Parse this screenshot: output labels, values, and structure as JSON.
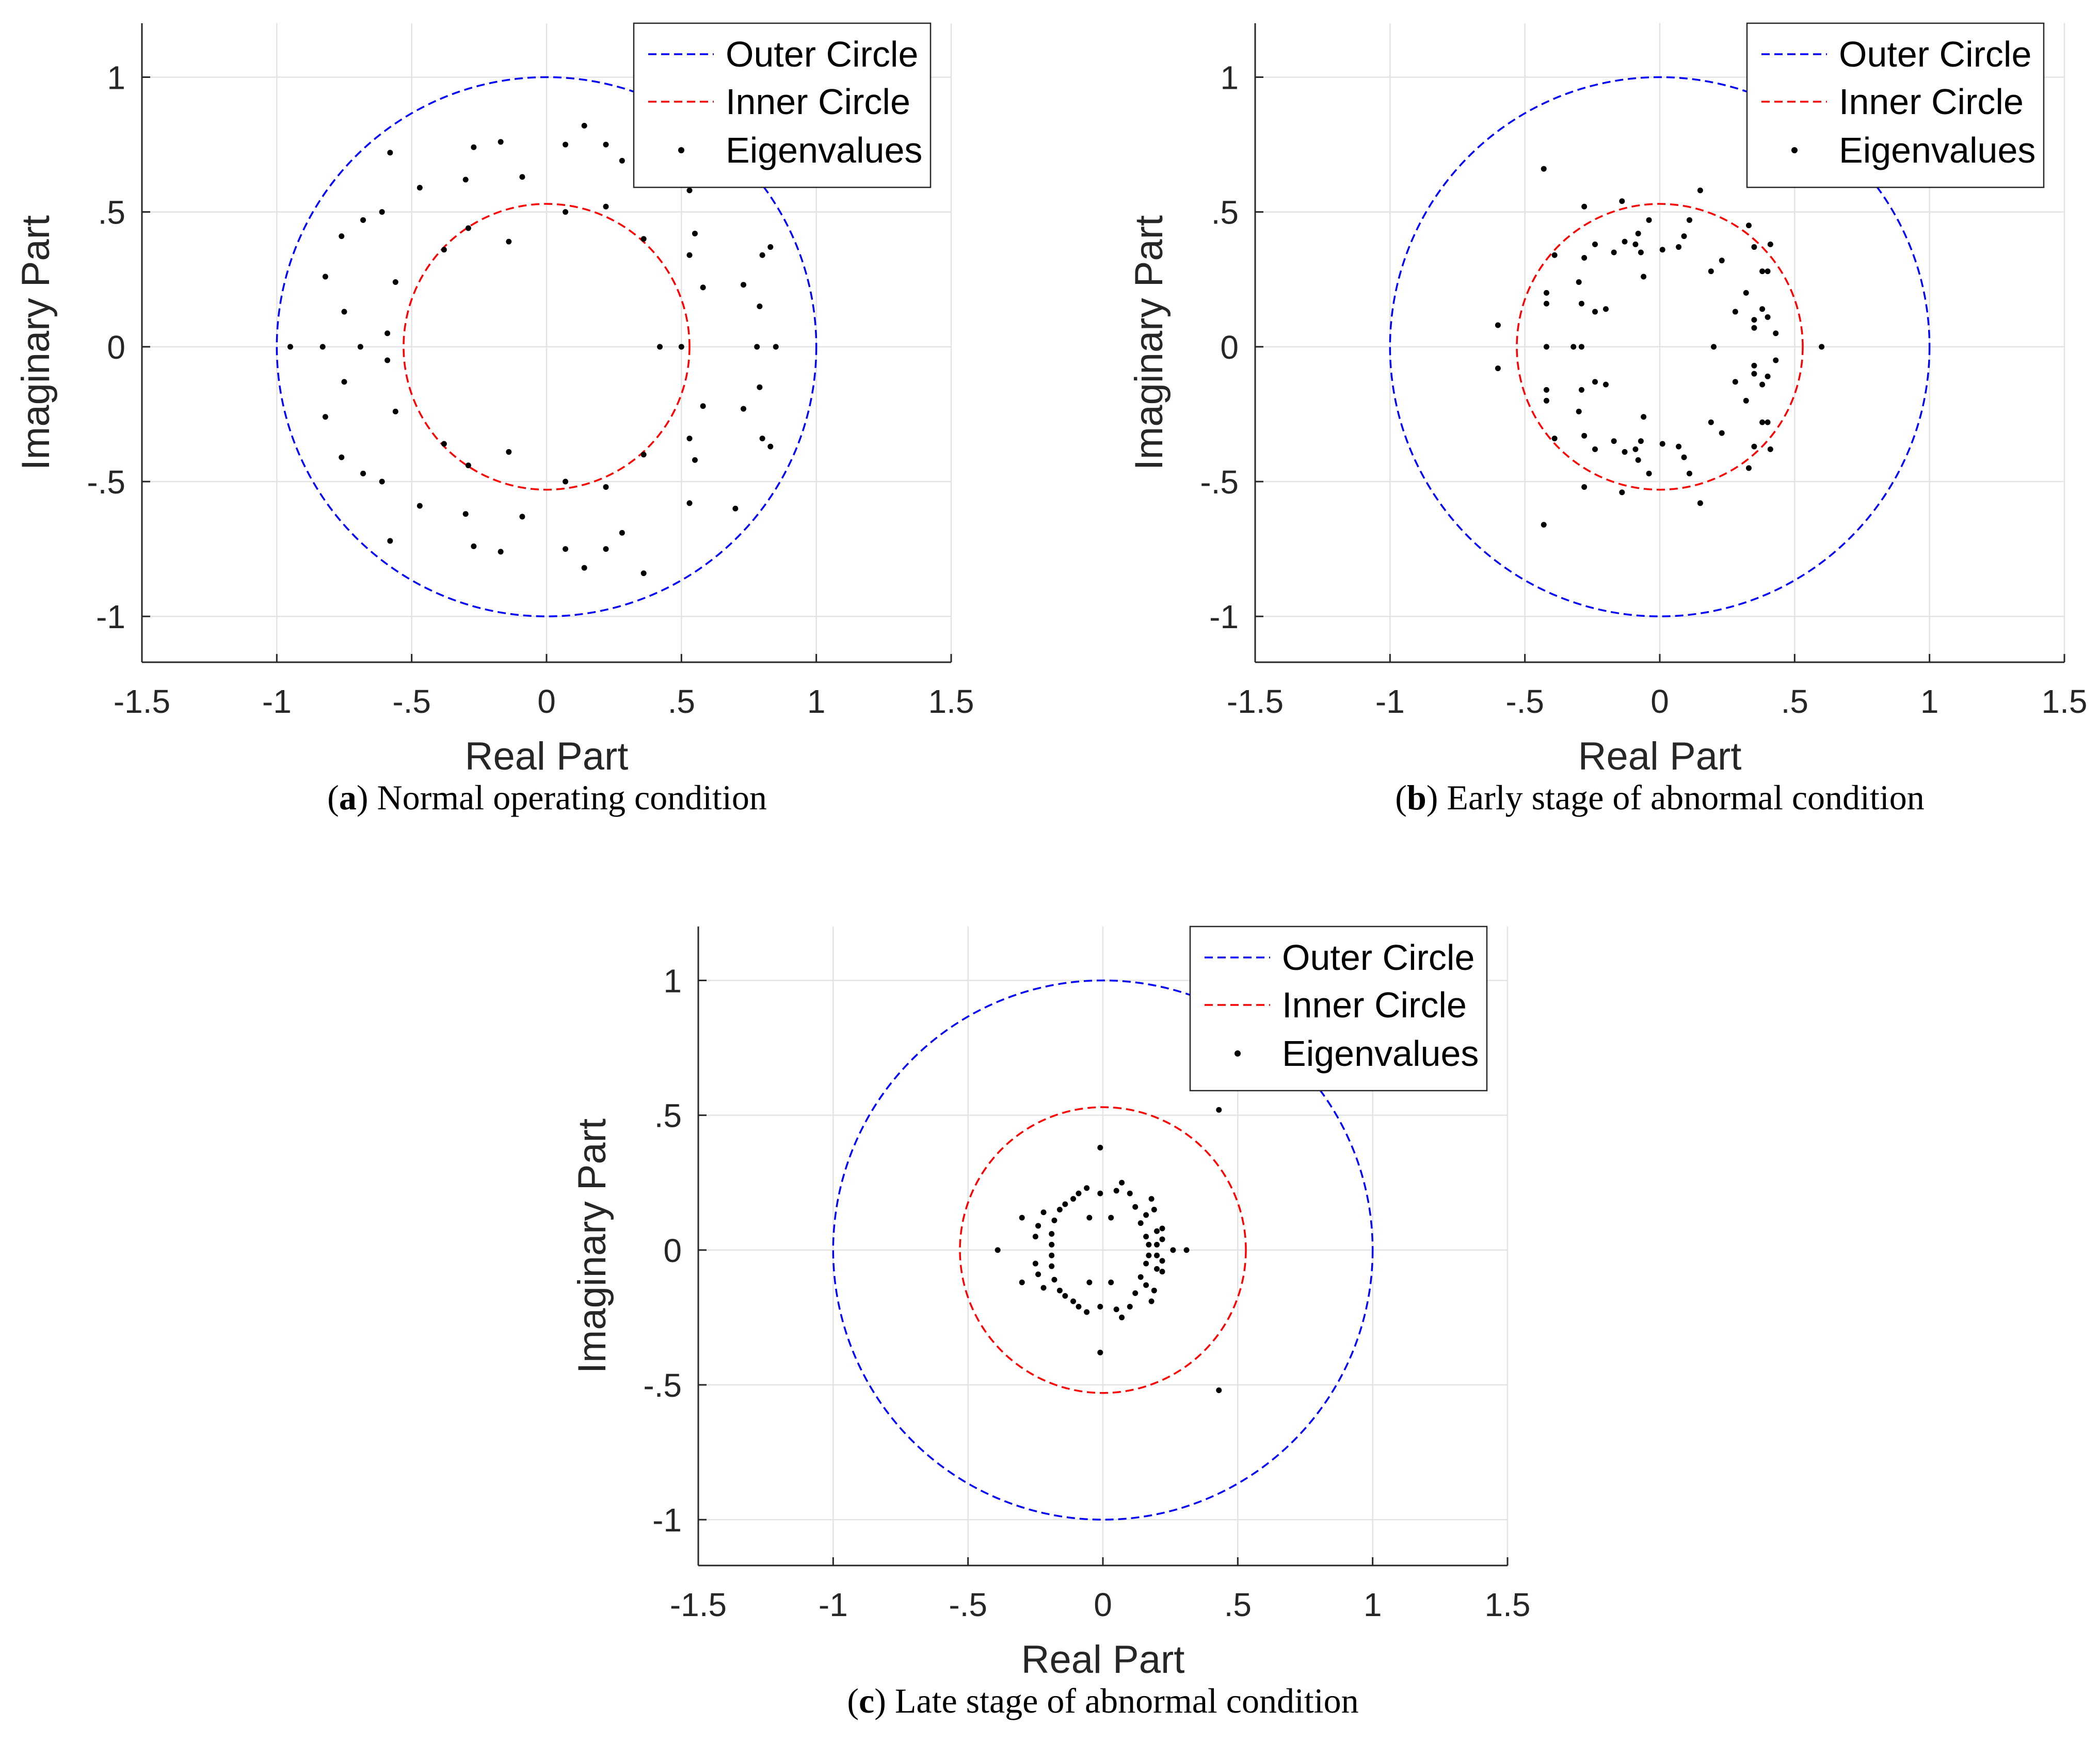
{
  "chart_data": [
    {
      "type": "scatter",
      "panel": "a",
      "caption_label": "a",
      "caption": "Normal operating condition",
      "xlabel": "Real Part",
      "ylabel": "Imaginary Part",
      "xlim": [
        -1.5,
        1.5
      ],
      "ylim": [
        -1.17,
        1.2
      ],
      "xticks": [
        -1.5,
        -1,
        -0.5,
        0,
        0.5,
        1,
        1.5
      ],
      "yticks": [
        -1,
        -0.5,
        0,
        0.5,
        1
      ],
      "grid": true,
      "legend_position": "top-right",
      "series": [
        {
          "name": "Outer Circle",
          "kind": "circle",
          "radius": 1.0,
          "color": "#0000ff",
          "style": "dashed"
        },
        {
          "name": "Inner Circle",
          "kind": "circle",
          "radius": 0.53,
          "color": "#ff0000",
          "style": "dashed"
        },
        {
          "name": "Eigenvalues",
          "kind": "points",
          "color": "#000000",
          "points": [
            [
              -0.95,
              0
            ],
            [
              -0.83,
              0
            ],
            [
              -0.69,
              0
            ],
            [
              -0.82,
              0.26
            ],
            [
              -0.82,
              -0.26
            ],
            [
              -0.76,
              0.41
            ],
            [
              -0.76,
              -0.41
            ],
            [
              -0.75,
              0.13
            ],
            [
              -0.75,
              -0.13
            ],
            [
              -0.68,
              0.47
            ],
            [
              -0.68,
              -0.47
            ],
            [
              -0.61,
              0.5
            ],
            [
              -0.61,
              -0.5
            ],
            [
              -0.59,
              0.05
            ],
            [
              -0.59,
              -0.05
            ],
            [
              -0.58,
              0.72
            ],
            [
              -0.58,
              -0.72
            ],
            [
              -0.56,
              0.24
            ],
            [
              -0.56,
              -0.24
            ],
            [
              -0.47,
              0.59
            ],
            [
              -0.47,
              -0.59
            ],
            [
              -0.38,
              0.36
            ],
            [
              -0.38,
              -0.36
            ],
            [
              -0.3,
              0.62
            ],
            [
              -0.3,
              -0.62
            ],
            [
              -0.29,
              0.44
            ],
            [
              -0.29,
              -0.44
            ],
            [
              -0.27,
              0.74
            ],
            [
              -0.27,
              -0.74
            ],
            [
              -0.17,
              0.76
            ],
            [
              -0.17,
              -0.76
            ],
            [
              -0.14,
              0.39
            ],
            [
              -0.14,
              -0.39
            ],
            [
              -0.09,
              0.63
            ],
            [
              -0.09,
              -0.63
            ],
            [
              0.07,
              0.75
            ],
            [
              0.07,
              -0.75
            ],
            [
              0.07,
              0.5
            ],
            [
              0.07,
              -0.5
            ],
            [
              0.14,
              0.82
            ],
            [
              0.14,
              -0.82
            ],
            [
              0.22,
              0.75
            ],
            [
              0.22,
              -0.75
            ],
            [
              0.22,
              0.52
            ],
            [
              0.22,
              -0.52
            ],
            [
              0.28,
              0.69
            ],
            [
              0.28,
              -0.69
            ],
            [
              0.36,
              0.4
            ],
            [
              0.36,
              -0.4
            ],
            [
              0.36,
              0.84
            ],
            [
              0.36,
              -0.84
            ],
            [
              0.42,
              0
            ],
            [
              0.5,
              0
            ],
            [
              0.53,
              0.34
            ],
            [
              0.53,
              -0.34
            ],
            [
              0.53,
              0.58
            ],
            [
              0.53,
              -0.58
            ],
            [
              0.55,
              0.42
            ],
            [
              0.55,
              -0.42
            ],
            [
              0.58,
              0.22
            ],
            [
              0.58,
              -0.22
            ],
            [
              0.7,
              0.6
            ],
            [
              0.7,
              -0.6
            ],
            [
              0.73,
              0.23
            ],
            [
              0.73,
              -0.23
            ],
            [
              0.78,
              0
            ],
            [
              0.79,
              0.15
            ],
            [
              0.79,
              -0.15
            ],
            [
              0.8,
              0.34
            ],
            [
              0.8,
              -0.34
            ],
            [
              0.83,
              0.37
            ],
            [
              0.83,
              -0.37
            ],
            [
              0.85,
              0
            ]
          ]
        }
      ]
    },
    {
      "type": "scatter",
      "panel": "b",
      "caption_label": "b",
      "caption": "Early stage of abnormal condition",
      "xlabel": "Real Part",
      "ylabel": "Imaginary Part",
      "xlim": [
        -1.5,
        1.5
      ],
      "ylim": [
        -1.17,
        1.2
      ],
      "xticks": [
        -1.5,
        -1,
        -0.5,
        0,
        0.5,
        1,
        1.5
      ],
      "yticks": [
        -1,
        -0.5,
        0,
        0.5,
        1
      ],
      "grid": true,
      "legend_position": "top-right",
      "series": [
        {
          "name": "Outer Circle",
          "kind": "circle",
          "radius": 1.0,
          "color": "#0000ff",
          "style": "dashed"
        },
        {
          "name": "Inner Circle",
          "kind": "circle",
          "radius": 0.53,
          "color": "#ff0000",
          "style": "dashed"
        },
        {
          "name": "Eigenvalues",
          "kind": "points",
          "color": "#000000",
          "points": [
            [
              -0.6,
              0.08
            ],
            [
              -0.6,
              -0.08
            ],
            [
              -0.43,
              0.66
            ],
            [
              -0.43,
              -0.66
            ],
            [
              -0.42,
              0.2
            ],
            [
              -0.42,
              -0.2
            ],
            [
              -0.42,
              0.16
            ],
            [
              -0.42,
              -0.16
            ],
            [
              -0.42,
              0
            ],
            [
              -0.39,
              0.34
            ],
            [
              -0.39,
              -0.34
            ],
            [
              -0.32,
              0
            ],
            [
              -0.29,
              0
            ],
            [
              -0.29,
              0.16
            ],
            [
              -0.29,
              -0.16
            ],
            [
              -0.3,
              0.24
            ],
            [
              -0.3,
              -0.24
            ],
            [
              -0.28,
              0.52
            ],
            [
              -0.28,
              -0.52
            ],
            [
              -0.28,
              0.33
            ],
            [
              -0.28,
              -0.33
            ],
            [
              -0.24,
              0.38
            ],
            [
              -0.24,
              -0.38
            ],
            [
              -0.24,
              0.13
            ],
            [
              -0.24,
              -0.13
            ],
            [
              -0.2,
              0.14
            ],
            [
              -0.2,
              -0.14
            ],
            [
              -0.17,
              0.35
            ],
            [
              -0.17,
              -0.35
            ],
            [
              -0.14,
              0.54
            ],
            [
              -0.14,
              -0.54
            ],
            [
              -0.13,
              0.39
            ],
            [
              -0.13,
              -0.39
            ],
            [
              -0.08,
              0.42
            ],
            [
              -0.08,
              -0.42
            ],
            [
              -0.09,
              0.38
            ],
            [
              -0.09,
              -0.38
            ],
            [
              -0.04,
              0.47
            ],
            [
              -0.04,
              -0.47
            ],
            [
              -0.07,
              0.35
            ],
            [
              -0.07,
              -0.35
            ],
            [
              -0.06,
              0.26
            ],
            [
              -0.06,
              -0.26
            ],
            [
              0.01,
              0.36
            ],
            [
              0.01,
              -0.36
            ],
            [
              0.07,
              0.37
            ],
            [
              0.07,
              -0.37
            ],
            [
              0.09,
              0.41
            ],
            [
              0.09,
              -0.41
            ],
            [
              0.11,
              0.47
            ],
            [
              0.11,
              -0.47
            ],
            [
              0.15,
              0.58
            ],
            [
              0.15,
              -0.58
            ],
            [
              0.19,
              0.28
            ],
            [
              0.19,
              -0.28
            ],
            [
              0.2,
              0
            ],
            [
              0.23,
              0.32
            ],
            [
              0.23,
              -0.32
            ],
            [
              0.28,
              0.13
            ],
            [
              0.28,
              -0.13
            ],
            [
              0.32,
              0.2
            ],
            [
              0.32,
              -0.2
            ],
            [
              0.33,
              0.45
            ],
            [
              0.33,
              -0.45
            ],
            [
              0.35,
              0.07
            ],
            [
              0.35,
              -0.07
            ],
            [
              0.35,
              0.37
            ],
            [
              0.35,
              -0.37
            ],
            [
              0.35,
              0.1
            ],
            [
              0.35,
              -0.1
            ],
            [
              0.38,
              0.28
            ],
            [
              0.38,
              -0.28
            ],
            [
              0.38,
              0.14
            ],
            [
              0.38,
              -0.14
            ],
            [
              0.4,
              0.28
            ],
            [
              0.4,
              -0.28
            ],
            [
              0.4,
              0.11
            ],
            [
              0.4,
              -0.11
            ],
            [
              0.41,
              0.38
            ],
            [
              0.41,
              -0.38
            ],
            [
              0.43,
              0.05
            ],
            [
              0.43,
              -0.05
            ],
            [
              0.6,
              0
            ]
          ]
        }
      ]
    },
    {
      "type": "scatter",
      "panel": "c",
      "caption_label": "c",
      "caption": "Late stage of abnormal condition",
      "xlabel": "Real Part",
      "ylabel": "Imaginary Part",
      "xlim": [
        -1.5,
        1.5
      ],
      "ylim": [
        -1.17,
        1.2
      ],
      "xticks": [
        -1.5,
        -1,
        -0.5,
        0,
        0.5,
        1,
        1.5
      ],
      "yticks": [
        -1,
        -0.5,
        0,
        0.5,
        1
      ],
      "grid": true,
      "legend_position": "top-right",
      "series": [
        {
          "name": "Outer Circle",
          "kind": "circle",
          "radius": 1.0,
          "color": "#0000ff",
          "style": "dashed"
        },
        {
          "name": "Inner Circle",
          "kind": "circle",
          "radius": 0.53,
          "color": "#ff0000",
          "style": "dashed"
        },
        {
          "name": "Eigenvalues",
          "kind": "points",
          "color": "#000000",
          "points": [
            [
              -0.39,
              0
            ],
            [
              -0.3,
              0.12
            ],
            [
              -0.3,
              -0.12
            ],
            [
              -0.25,
              0.05
            ],
            [
              -0.25,
              -0.05
            ],
            [
              -0.24,
              0.09
            ],
            [
              -0.24,
              -0.09
            ],
            [
              -0.22,
              0.14
            ],
            [
              -0.22,
              -0.14
            ],
            [
              -0.19,
              0.02
            ],
            [
              -0.19,
              -0.02
            ],
            [
              -0.19,
              0.06
            ],
            [
              -0.19,
              -0.06
            ],
            [
              -0.18,
              0.11
            ],
            [
              -0.18,
              -0.11
            ],
            [
              -0.16,
              0.15
            ],
            [
              -0.16,
              -0.15
            ],
            [
              -0.14,
              0.17
            ],
            [
              -0.14,
              -0.17
            ],
            [
              -0.11,
              0.19
            ],
            [
              -0.11,
              -0.19
            ],
            [
              -0.09,
              0.21
            ],
            [
              -0.09,
              -0.21
            ],
            [
              -0.06,
              0.23
            ],
            [
              -0.06,
              -0.23
            ],
            [
              -0.05,
              0.12
            ],
            [
              -0.05,
              -0.12
            ],
            [
              -0.01,
              0.21
            ],
            [
              -0.01,
              -0.21
            ],
            [
              -0.01,
              0.38
            ],
            [
              -0.01,
              -0.38
            ],
            [
              0.03,
              0.12
            ],
            [
              0.03,
              -0.12
            ],
            [
              0.05,
              0.22
            ],
            [
              0.05,
              -0.22
            ],
            [
              0.07,
              0.25
            ],
            [
              0.07,
              -0.25
            ],
            [
              0.1,
              0.21
            ],
            [
              0.1,
              -0.21
            ],
            [
              0.12,
              0.16
            ],
            [
              0.12,
              -0.16
            ],
            [
              0.14,
              0.1
            ],
            [
              0.14,
              -0.1
            ],
            [
              0.16,
              0.13
            ],
            [
              0.16,
              -0.13
            ],
            [
              0.16,
              0.05
            ],
            [
              0.16,
              -0.05
            ],
            [
              0.17,
              0.02
            ],
            [
              0.17,
              -0.02
            ],
            [
              0.18,
              0.19
            ],
            [
              0.18,
              -0.19
            ],
            [
              0.19,
              0.15
            ],
            [
              0.19,
              -0.15
            ],
            [
              0.2,
              0.07
            ],
            [
              0.2,
              -0.07
            ],
            [
              0.2,
              0.02
            ],
            [
              0.2,
              -0.02
            ],
            [
              0.22,
              0.08
            ],
            [
              0.22,
              -0.08
            ],
            [
              0.22,
              0.04
            ],
            [
              0.22,
              -0.04
            ],
            [
              0.26,
              0
            ],
            [
              0.31,
              0
            ],
            [
              0.43,
              0.52
            ],
            [
              0.43,
              -0.52
            ]
          ]
        }
      ]
    }
  ]
}
